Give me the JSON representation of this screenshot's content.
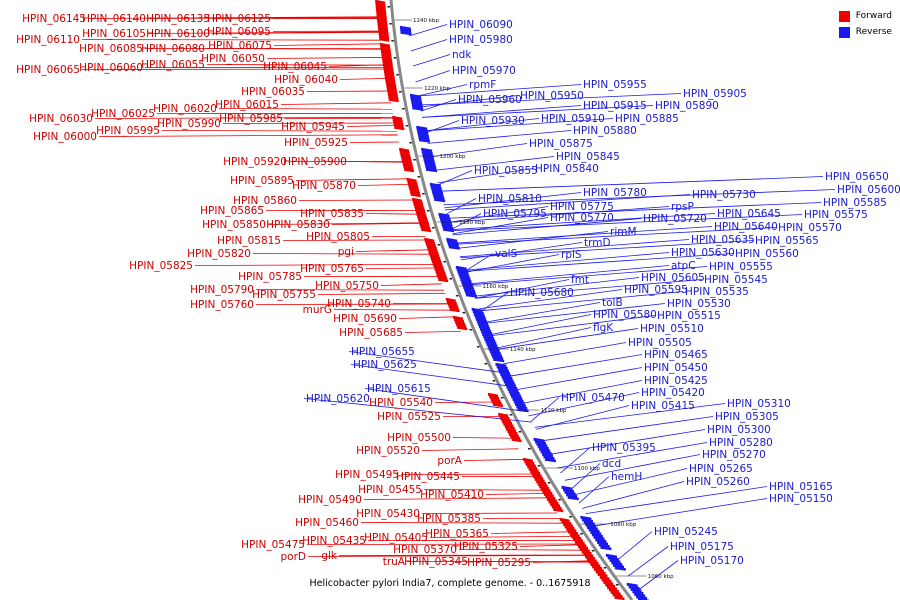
{
  "legend": {
    "forward_label": "Forward",
    "reverse_label": "Reverse",
    "forward_color": "#ee0000",
    "reverse_color": "#1a1aee"
  },
  "caption": "Helicobacter pylori India7, complete genome. - 0..1675918",
  "ticks": [
    "1240 kbp",
    "1220 kbp",
    "1200 kbp",
    "1180 kbp",
    "1160 kbp",
    "1140 kbp",
    "1120 kbp",
    "1100 kbp",
    "1080 kbp",
    "1060 kbp"
  ],
  "forward_genes": [
    "HPIN_06145",
    "HPIN_06140",
    "HPIN_06135",
    "HPIN_06125",
    "HPIN_06110",
    "HPIN_06105",
    "HPIN_06100",
    "HPIN_06095",
    "HPIN_06085",
    "HPIN_06080",
    "HPIN_06075",
    "HPIN_06050",
    "HPIN_06065",
    "HPIN_06060",
    "HPIN_06055",
    "HPIN_06045",
    "HPIN_06040",
    "HPIN_06035",
    "HPIN_06025",
    "HPIN_06020",
    "HPIN_06015",
    "HPIN_06030",
    "HPIN_05990",
    "HPIN_05985",
    "HPIN_05995",
    "HPIN_06000",
    "HPIN_05945",
    "HPIN_05925",
    "HPIN_05920",
    "HPIN_05900",
    "HPIN_05895",
    "HPIN_05870",
    "HPIN_05860",
    "HPIN_05865",
    "HPIN_05835",
    "HPIN_05850",
    "HPIN_05830",
    "HPIN_05815",
    "HPIN_05805",
    "HPIN_05820",
    "pgi",
    "HPIN_05825",
    "HPIN_05765",
    "HPIN_05785",
    "HPIN_05790",
    "HPIN_05750",
    "HPIN_05755",
    "HPIN_05760",
    "HPIN_05740",
    "murG",
    "HPIN_05690",
    "HPIN_05685",
    "HPIN_05540",
    "HPIN_05525",
    "HPIN_05500",
    "HPIN_05520",
    "porA",
    "HPIN_05495",
    "HPIN_05445",
    "HPIN_05455",
    "HPIN_05490",
    "HPIN_05410",
    "HPIN_05430",
    "HPIN_05385",
    "HPIN_05460",
    "HPIN_05365",
    "HPIN_05405",
    "HPIN_05475",
    "HPIN_05435",
    "HPIN_05370",
    "HPIN_05325",
    "porD",
    "glk",
    "truA",
    "HPIN_05345",
    "HPIN_05295"
  ],
  "reverse_genes": [
    "HPIN_06090",
    "HPIN_05980",
    "ndk",
    "HPIN_05970",
    "rpmF",
    "HPIN_05955",
    "HPIN_05960",
    "HPIN_05950",
    "HPIN_05905",
    "HPIN_05915",
    "HPIN_05890",
    "HPIN_05930",
    "HPIN_05910",
    "HPIN_05885",
    "HPIN_05880",
    "HPIN_05875",
    "HPIN_05845",
    "HPIN_05855",
    "HPIN_05840",
    "HPIN_05780",
    "HPIN_05810",
    "HPIN_05775",
    "HPIN_05730",
    "HPIN_05795",
    "HPIN_05770",
    "rpsP",
    "HPIN_05720",
    "rimM",
    "trmD",
    "valS",
    "rplS",
    "HPIN_05650",
    "HPIN_05600",
    "HPIN_05585",
    "HPIN_05645",
    "HPIN_05575",
    "HPIN_05640",
    "HPIN_05570",
    "HPIN_05635",
    "HPIN_05565",
    "HPIN_05630",
    "HPIN_05560",
    "atpC",
    "HPIN_05555",
    "fmt",
    "HPIN_05605",
    "HPIN_05545",
    "HPIN_05680",
    "HPIN_05595",
    "HPIN_05535",
    "tolB",
    "HPIN_05530",
    "HPIN_05580",
    "HPIN_05515",
    "flgK",
    "HPIN_05510",
    "HPIN_05505",
    "HPIN_05655",
    "HPIN_05465",
    "HPIN_05625",
    "HPIN_05450",
    "HPIN_05425",
    "HPIN_05615",
    "HPIN_05620",
    "HPIN_05470",
    "HPIN_05420",
    "HPIN_05415",
    "HPIN_05310",
    "HPIN_05305",
    "HPIN_05300",
    "HPIN_05280",
    "HPIN_05395",
    "HPIN_05270",
    "dcd",
    "HPIN_05265",
    "hemH",
    "HPIN_05260",
    "HPIN_05165",
    "HPIN_05150",
    "HPIN_05245",
    "HPIN_05175",
    "HPIN_05170"
  ]
}
